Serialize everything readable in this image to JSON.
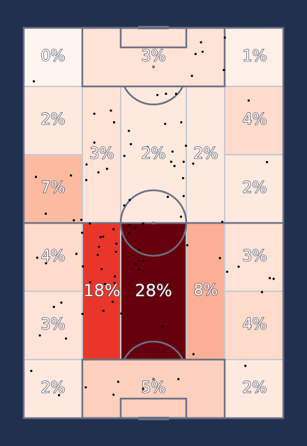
{
  "colors": {
    "background": "#22304f",
    "pitch_lines": "#6b7085",
    "zone_border": "#c7c9d1",
    "points": "#000000",
    "label_text": "#ffffff",
    "label_outline": "#3a3f52"
  },
  "chart_data": {
    "type": "heatmap",
    "title": "",
    "colormap": "Reds",
    "value_range": [
      0,
      28
    ],
    "zones": [
      {
        "id": "z1",
        "label": "0%",
        "value": 0
      },
      {
        "id": "z2",
        "label": "3%",
        "value": 3
      },
      {
        "id": "z3",
        "label": "1%",
        "value": 1
      },
      {
        "id": "z4",
        "label": "2%",
        "value": 2
      },
      {
        "id": "z5",
        "label": "4%",
        "value": 4
      },
      {
        "id": "z6",
        "label": "7%",
        "value": 7
      },
      {
        "id": "z7",
        "label": "3%",
        "value": 3
      },
      {
        "id": "z8",
        "label": "2%",
        "value": 2
      },
      {
        "id": "z9",
        "label": "2%",
        "value": 2
      },
      {
        "id": "z10",
        "label": "2%",
        "value": 2
      },
      {
        "id": "z11",
        "label": "4%",
        "value": 4
      },
      {
        "id": "z12",
        "label": "3%",
        "value": 3
      },
      {
        "id": "z13",
        "label": "3%",
        "value": 3
      },
      {
        "id": "z14",
        "label": "18%",
        "value": 18
      },
      {
        "id": "z15",
        "label": "28%",
        "value": 28
      },
      {
        "id": "z16",
        "label": "8%",
        "value": 8
      },
      {
        "id": "z17",
        "label": "4%",
        "value": 4
      },
      {
        "id": "z18",
        "label": "2%",
        "value": 2
      },
      {
        "id": "z19",
        "label": "5%",
        "value": 5
      },
      {
        "id": "z20",
        "label": "2%",
        "value": 2
      }
    ],
    "event_points": [
      [
        77.5,
        2.5
      ],
      [
        68.9,
        6.1
      ],
      [
        68.3,
        3.7
      ],
      [
        51.5,
        17.2
      ],
      [
        54.8,
        16.9
      ],
      [
        58.7,
        16.9
      ],
      [
        55.5,
        43.3
      ],
      [
        63,
        55.7
      ],
      [
        61.6,
        43.1
      ],
      [
        60.6,
        48.4
      ],
      [
        58.1,
        35.4
      ],
      [
        57.3,
        31.7
      ],
      [
        56.8,
        34.3
      ],
      [
        61.6,
        34.3
      ],
      [
        61.4,
        38.5
      ],
      [
        62.5,
        30.2
      ],
      [
        60.7,
        24.2
      ],
      [
        54.5,
        24.6
      ],
      [
        47.7,
        30.6
      ],
      [
        65.3,
        34.8
      ],
      [
        64.8,
        12.3
      ],
      [
        33.6,
        21.2
      ],
      [
        3.9,
        13.7
      ],
      [
        4.7,
        38.2
      ],
      [
        8.5,
        47.6
      ],
      [
        2.9,
        87.9
      ],
      [
        8.6,
        60.3
      ],
      [
        5.2,
        58.9
      ],
      [
        6.2,
        78.8
      ],
      [
        14.5,
        70.4
      ],
      [
        11.6,
        71.5
      ],
      [
        22.6,
        73.3
      ],
      [
        16.3,
        79.6
      ],
      [
        23.9,
        92.1
      ],
      [
        13.6,
        94.1
      ],
      [
        25.6,
        65.2
      ],
      [
        22.8,
        61.1
      ],
      [
        30,
        61.8
      ],
      [
        27.2,
        29.4
      ],
      [
        24.2,
        35
      ],
      [
        34.6,
        94
      ],
      [
        37.6,
        73.2
      ],
      [
        34.3,
        70.2
      ],
      [
        31.3,
        65.6
      ],
      [
        25.5,
        50.1
      ],
      [
        20.3,
        57.9
      ],
      [
        22.5,
        52.5
      ],
      [
        22.2,
        49.2
      ],
      [
        19.3,
        49.3
      ],
      [
        29,
        56.1
      ],
      [
        29.6,
        53.6
      ],
      [
        28.5,
        58.2
      ],
      [
        24.1,
        39
      ],
      [
        34.6,
        51.6
      ],
      [
        32.1,
        36.1
      ],
      [
        28.8,
        37
      ],
      [
        35.5,
        57.4
      ],
      [
        30.6,
        53.5
      ],
      [
        43,
        60.5
      ],
      [
        44.4,
        61.9
      ],
      [
        44.6,
        56.8
      ],
      [
        46.1,
        59.7
      ],
      [
        35.1,
        63.7
      ],
      [
        40.6,
        52.6
      ],
      [
        46,
        50.1
      ],
      [
        40.7,
        50.5
      ],
      [
        35.7,
        55.3
      ],
      [
        42.9,
        51.2
      ],
      [
        40.8,
        44.1
      ],
      [
        38.7,
        45.5
      ],
      [
        35,
        65.4
      ],
      [
        18.2,
        37.8
      ],
      [
        27.2,
        22
      ],
      [
        34.8,
        24.2
      ],
      [
        38.8,
        32.8
      ],
      [
        41.3,
        29.8
      ],
      [
        59.6,
        90
      ],
      [
        75.6,
        59
      ],
      [
        76.5,
        49.7
      ],
      [
        82.8,
        61.2
      ],
      [
        85.4,
        86.6
      ],
      [
        94.8,
        64.1
      ],
      [
        93.7,
        34.4
      ],
      [
        65.4,
        83.6
      ],
      [
        66.2,
        6.7
      ],
      [
        86.7,
        18.6
      ],
      [
        77.1,
        10.8
      ],
      [
        85,
        76.4
      ],
      [
        96.3,
        64.3
      ],
      [
        90,
        93.1
      ],
      [
        78.4,
        62.5
      ],
      [
        91.8,
        67.7
      ],
      [
        36.4,
        90.7
      ],
      [
        46,
        92.5
      ],
      [
        40.5,
        26.4
      ],
      [
        30.7,
        72.5
      ],
      [
        53.6,
        76.5
      ]
    ]
  }
}
